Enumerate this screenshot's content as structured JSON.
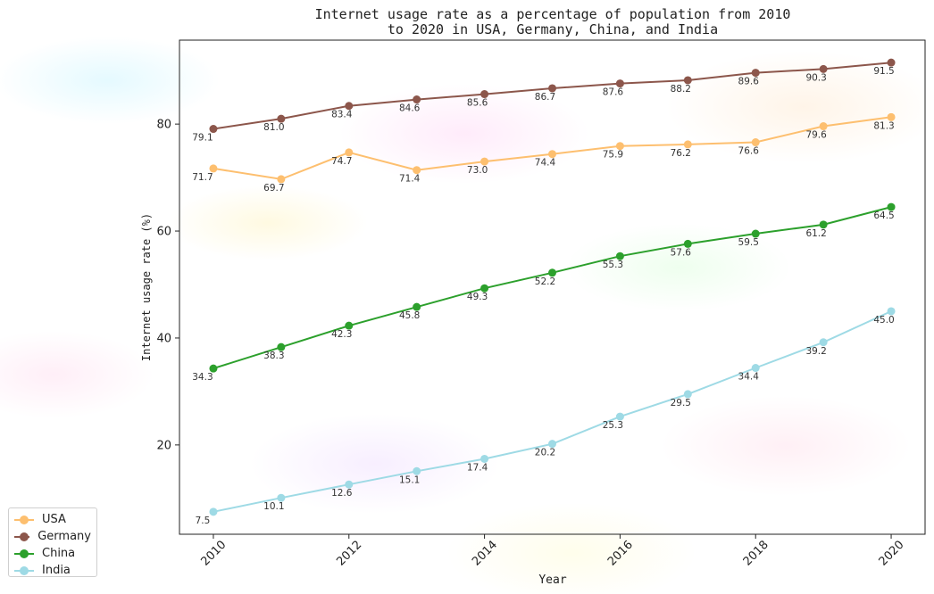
{
  "chart_data": {
    "type": "line",
    "title": "Internet usage rate as a percentage of population from 2010\nto 2020 in USA, Germany, China, and India",
    "xlabel": "Year",
    "ylabel": "Internet usage rate (%)",
    "x": [
      2010,
      2011,
      2012,
      2013,
      2014,
      2015,
      2016,
      2017,
      2018,
      2019,
      2020
    ],
    "x_ticks": [
      "2010",
      "2012",
      "2014",
      "2016",
      "2018",
      "2020"
    ],
    "y_ticks": [
      "20",
      "40",
      "60",
      "80"
    ],
    "xlim": [
      2009.5,
      2020.5
    ],
    "ylim": [
      3.3,
      95.7
    ],
    "grid": false,
    "legend_position": "lower-left",
    "series": [
      {
        "name": "USA",
        "color": "#fdbf6f",
        "values": [
          71.7,
          69.7,
          74.7,
          71.4,
          73.0,
          74.4,
          75.9,
          76.2,
          76.6,
          79.6,
          81.3
        ]
      },
      {
        "name": "Germany",
        "color": "#8c564b",
        "values": [
          79.1,
          81.0,
          83.4,
          84.6,
          85.6,
          86.7,
          87.6,
          88.2,
          89.6,
          90.3,
          91.5
        ]
      },
      {
        "name": "China",
        "color": "#2ca02c",
        "values": [
          34.3,
          38.3,
          42.3,
          45.8,
          49.3,
          52.2,
          55.3,
          57.6,
          59.5,
          61.2,
          64.5
        ]
      },
      {
        "name": "India",
        "color": "#9edae5",
        "values": [
          7.5,
          10.1,
          12.6,
          15.1,
          17.4,
          20.2,
          25.3,
          29.5,
          34.4,
          39.2,
          45.0
        ]
      }
    ]
  }
}
